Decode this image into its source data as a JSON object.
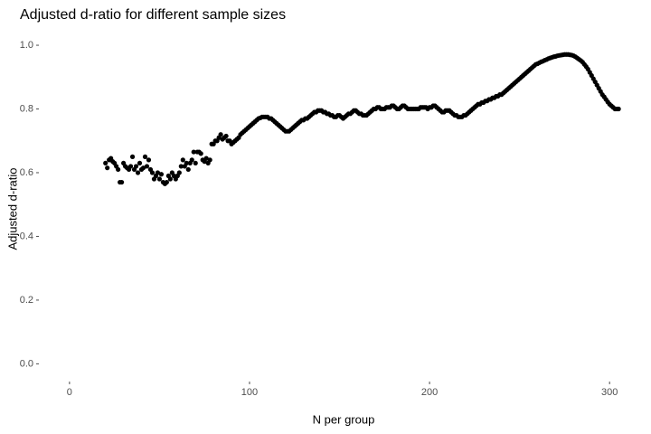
{
  "chart_data": {
    "type": "scatter",
    "title": "Adjusted d-ratio for different sample sizes",
    "x_label": "N per group",
    "y_label": "Adjusted d-ratio",
    "color": "#000000",
    "grid": false,
    "xlim": [
      -15,
      320
    ],
    "ylim": [
      -0.05,
      1.02
    ],
    "xticks": [
      0,
      100,
      200,
      300
    ],
    "yticks": [
      {
        "value": 0,
        "label": "0.0"
      },
      {
        "value": 0.2,
        "label": "0.2"
      },
      {
        "value": 0.4,
        "label": "0.4"
      },
      {
        "value": 0.6,
        "label": "0.6"
      },
      {
        "value": 0.8,
        "label": "0.8"
      },
      {
        "value": 1,
        "label": "1.0"
      }
    ],
    "x": [
      20,
      21,
      22,
      23,
      24,
      25,
      26,
      27,
      28,
      29,
      30,
      31,
      32,
      33,
      34,
      35,
      36,
      37,
      38,
      39,
      40,
      41,
      42,
      43,
      44,
      45,
      46,
      47,
      48,
      49,
      50,
      51,
      52,
      53,
      54,
      55,
      56,
      57,
      58,
      59,
      60,
      61,
      62,
      63,
      64,
      65,
      66,
      67,
      68,
      69,
      70,
      71,
      72,
      73,
      74,
      75,
      76,
      77,
      78,
      79,
      80,
      81,
      82,
      83,
      84,
      85,
      86,
      87,
      88,
      89,
      90,
      91,
      92,
      93,
      94,
      95,
      96,
      97,
      98,
      99,
      100,
      101,
      102,
      103,
      104,
      105,
      106,
      107,
      108,
      109,
      110,
      111,
      112,
      113,
      114,
      115,
      116,
      117,
      118,
      119,
      120,
      121,
      122,
      123,
      124,
      125,
      126,
      127,
      128,
      129,
      130,
      131,
      132,
      133,
      134,
      135,
      136,
      137,
      138,
      139,
      140,
      141,
      142,
      143,
      144,
      145,
      146,
      147,
      148,
      149,
      150,
      151,
      152,
      153,
      154,
      155,
      156,
      157,
      158,
      159,
      160,
      161,
      162,
      163,
      164,
      165,
      166,
      167,
      168,
      169,
      170,
      171,
      172,
      173,
      174,
      175,
      176,
      177,
      178,
      179,
      180,
      181,
      182,
      183,
      184,
      185,
      186,
      187,
      188,
      189,
      190,
      191,
      192,
      193,
      194,
      195,
      196,
      197,
      198,
      199,
      200,
      201,
      202,
      203,
      204,
      205,
      206,
      207,
      208,
      209,
      210,
      211,
      212,
      213,
      214,
      215,
      216,
      217,
      218,
      219,
      220,
      221,
      222,
      223,
      224,
      225,
      226,
      227,
      228,
      229,
      230,
      231,
      232,
      233,
      234,
      235,
      236,
      237,
      238,
      239,
      240,
      241,
      242,
      243,
      244,
      245,
      246,
      247,
      248,
      249,
      250,
      251,
      252,
      253,
      254,
      255,
      256,
      257,
      258,
      259,
      260,
      261,
      262,
      263,
      264,
      265,
      266,
      267,
      268,
      269,
      270,
      271,
      272,
      273,
      274,
      275,
      276,
      277,
      278,
      279,
      280,
      281,
      282,
      283,
      284,
      285,
      286,
      287,
      288,
      289,
      290,
      291,
      292,
      293,
      294,
      295,
      296,
      297,
      298,
      299,
      300,
      301,
      302,
      303,
      304,
      305
    ],
    "values": [
      0.63,
      0.615,
      0.64,
      0.645,
      0.635,
      0.63,
      0.62,
      0.61,
      0.57,
      0.57,
      0.63,
      0.62,
      0.615,
      0.61,
      0.62,
      0.65,
      0.61,
      0.62,
      0.6,
      0.63,
      0.61,
      0.615,
      0.65,
      0.62,
      0.64,
      0.61,
      0.6,
      0.58,
      0.59,
      0.6,
      0.58,
      0.595,
      0.57,
      0.565,
      0.57,
      0.59,
      0.58,
      0.6,
      0.59,
      0.58,
      0.59,
      0.6,
      0.62,
      0.64,
      0.62,
      0.63,
      0.61,
      0.63,
      0.64,
      0.665,
      0.63,
      0.665,
      0.665,
      0.66,
      0.64,
      0.635,
      0.645,
      0.63,
      0.64,
      0.69,
      0.69,
      0.7,
      0.7,
      0.71,
      0.72,
      0.705,
      0.71,
      0.715,
      0.7,
      0.7,
      0.69,
      0.695,
      0.7,
      0.705,
      0.71,
      0.72,
      0.725,
      0.73,
      0.735,
      0.74,
      0.745,
      0.75,
      0.755,
      0.76,
      0.765,
      0.77,
      0.772,
      0.775,
      0.775,
      0.775,
      0.775,
      0.77,
      0.77,
      0.765,
      0.76,
      0.755,
      0.75,
      0.745,
      0.74,
      0.735,
      0.73,
      0.73,
      0.73,
      0.735,
      0.74,
      0.745,
      0.75,
      0.755,
      0.76,
      0.765,
      0.765,
      0.77,
      0.77,
      0.775,
      0.78,
      0.785,
      0.79,
      0.79,
      0.795,
      0.795,
      0.795,
      0.79,
      0.79,
      0.785,
      0.785,
      0.78,
      0.78,
      0.775,
      0.775,
      0.78,
      0.78,
      0.775,
      0.77,
      0.775,
      0.78,
      0.785,
      0.785,
      0.79,
      0.795,
      0.795,
      0.79,
      0.785,
      0.785,
      0.78,
      0.78,
      0.78,
      0.785,
      0.79,
      0.795,
      0.8,
      0.8,
      0.805,
      0.805,
      0.8,
      0.8,
      0.8,
      0.805,
      0.805,
      0.805,
      0.81,
      0.81,
      0.805,
      0.8,
      0.8,
      0.805,
      0.81,
      0.81,
      0.805,
      0.8,
      0.8,
      0.8,
      0.8,
      0.8,
      0.8,
      0.8,
      0.805,
      0.805,
      0.805,
      0.805,
      0.8,
      0.805,
      0.805,
      0.81,
      0.81,
      0.805,
      0.8,
      0.795,
      0.79,
      0.79,
      0.795,
      0.795,
      0.795,
      0.79,
      0.785,
      0.78,
      0.78,
      0.775,
      0.775,
      0.775,
      0.78,
      0.78,
      0.785,
      0.79,
      0.795,
      0.8,
      0.805,
      0.81,
      0.815,
      0.815,
      0.82,
      0.82,
      0.825,
      0.825,
      0.83,
      0.83,
      0.835,
      0.835,
      0.84,
      0.84,
      0.845,
      0.845,
      0.85,
      0.855,
      0.86,
      0.865,
      0.87,
      0.875,
      0.88,
      0.885,
      0.89,
      0.895,
      0.9,
      0.905,
      0.91,
      0.915,
      0.92,
      0.925,
      0.93,
      0.935,
      0.94,
      0.942,
      0.945,
      0.948,
      0.95,
      0.953,
      0.955,
      0.958,
      0.96,
      0.962,
      0.964,
      0.965,
      0.967,
      0.968,
      0.969,
      0.97,
      0.971,
      0.971,
      0.971,
      0.97,
      0.969,
      0.967,
      0.964,
      0.96,
      0.956,
      0.952,
      0.947,
      0.94,
      0.933,
      0.925,
      0.915,
      0.905,
      0.895,
      0.885,
      0.875,
      0.865,
      0.855,
      0.845,
      0.838,
      0.83,
      0.822,
      0.815,
      0.81,
      0.805,
      0.8,
      0.8,
      0.8
    ]
  }
}
